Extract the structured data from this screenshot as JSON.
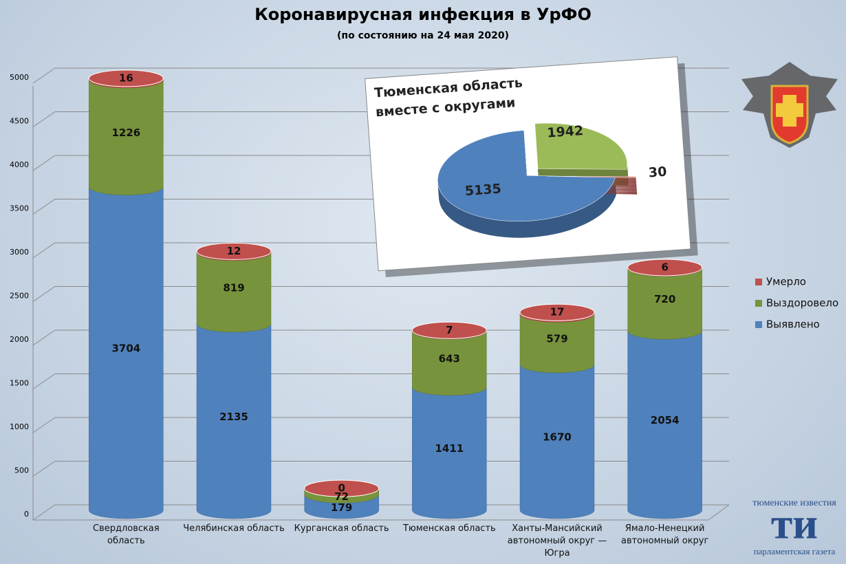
{
  "chart_data": [
    {
      "type": "bar",
      "stacked": true,
      "title": "Коронавирусная инфекция в УрФО",
      "subtitle": "(по состоянию на 24 мая 2020)",
      "categories": [
        "Свердловская область",
        "Челябинская область",
        "Курганская область",
        "Тюменская область",
        "Ханты-Мансийский автономный округ — Югра",
        "Ямало-Ненецкий автономный округ"
      ],
      "series": [
        {
          "name": "Выявлено",
          "color": "#4f81bd",
          "values": [
            3704,
            2135,
            179,
            1411,
            1670,
            2054
          ]
        },
        {
          "name": "Выздоровело",
          "color": "#77933c",
          "values": [
            1226,
            819,
            72,
            643,
            579,
            720
          ]
        },
        {
          "name": "Умерло",
          "color": "#c0504d",
          "values": [
            16,
            12,
            0,
            7,
            17,
            6
          ]
        }
      ],
      "ylim": [
        0,
        5000
      ],
      "yticks": [
        0,
        500,
        1000,
        1500,
        2000,
        2500,
        3000,
        3500,
        4000,
        4500,
        5000
      ],
      "grid": true,
      "legend": "right"
    },
    {
      "type": "pie",
      "title": "Тюменская область вместе с округами",
      "values": [
        5135,
        1942,
        30
      ],
      "colors": [
        "#4f81bd",
        "#9bbb59",
        "#c0504d"
      ]
    }
  ],
  "logo": {
    "top": "тюменские известия",
    "mark": "ти",
    "bottom": "парламентская газета"
  }
}
